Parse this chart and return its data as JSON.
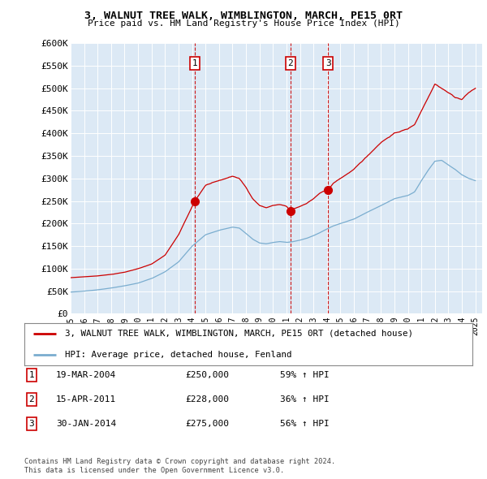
{
  "title": "3, WALNUT TREE WALK, WIMBLINGTON, MARCH, PE15 0RT",
  "subtitle": "Price paid vs. HM Land Registry's House Price Index (HPI)",
  "plot_bg_color": "#dce9f5",
  "ylim": [
    0,
    600000
  ],
  "yticks": [
    0,
    50000,
    100000,
    150000,
    200000,
    250000,
    300000,
    350000,
    400000,
    450000,
    500000,
    550000,
    600000
  ],
  "ytick_labels": [
    "£0",
    "£50K",
    "£100K",
    "£150K",
    "£200K",
    "£250K",
    "£300K",
    "£350K",
    "£400K",
    "£450K",
    "£500K",
    "£550K",
    "£600K"
  ],
  "xlim_start": 1995.0,
  "xlim_end": 2025.5,
  "red_line_color": "#cc0000",
  "blue_line_color": "#7aadcf",
  "transactions": [
    {
      "num": 1,
      "year": 2004.21,
      "price": 250000,
      "date": "19-MAR-2004",
      "pct": "59%",
      "dir": "↑"
    },
    {
      "num": 2,
      "year": 2011.29,
      "price": 228000,
      "date": "15-APR-2011",
      "pct": "36%",
      "dir": "↑"
    },
    {
      "num": 3,
      "year": 2014.08,
      "price": 275000,
      "date": "30-JAN-2014",
      "pct": "56%",
      "dir": "↑"
    }
  ],
  "legend_red_label": "3, WALNUT TREE WALK, WIMBLINGTON, MARCH, PE15 0RT (detached house)",
  "legend_blue_label": "HPI: Average price, detached house, Fenland",
  "footer_line1": "Contains HM Land Registry data © Crown copyright and database right 2024.",
  "footer_line2": "This data is licensed under the Open Government Licence v3.0.",
  "red_knots_x": [
    1995.0,
    1996.0,
    1997.0,
    1998.0,
    1999.0,
    2000.0,
    2001.0,
    2002.0,
    2003.0,
    2004.21,
    2005.0,
    2006.0,
    2007.0,
    2007.5,
    2008.0,
    2008.5,
    2009.0,
    2009.5,
    2010.0,
    2010.5,
    2011.0,
    2011.29,
    2011.5,
    2012.0,
    2012.5,
    2013.0,
    2013.5,
    2014.08,
    2014.5,
    2015.0,
    2016.0,
    2017.0,
    2018.0,
    2019.0,
    2020.0,
    2020.5,
    2021.0,
    2021.5,
    2022.0,
    2022.5,
    2023.0,
    2023.5,
    2024.0,
    2024.5,
    2025.0
  ],
  "red_knots_y": [
    80000,
    82000,
    84000,
    87000,
    92000,
    100000,
    110000,
    130000,
    175000,
    250000,
    285000,
    295000,
    305000,
    300000,
    280000,
    255000,
    240000,
    235000,
    240000,
    242000,
    238000,
    228000,
    232000,
    238000,
    245000,
    255000,
    268000,
    275000,
    290000,
    300000,
    320000,
    350000,
    380000,
    400000,
    410000,
    420000,
    450000,
    480000,
    510000,
    500000,
    490000,
    480000,
    475000,
    490000,
    500000
  ],
  "blue_knots_x": [
    1995.0,
    1996.0,
    1997.0,
    1998.0,
    1999.0,
    2000.0,
    2001.0,
    2002.0,
    2003.0,
    2004.0,
    2005.0,
    2006.0,
    2007.0,
    2007.5,
    2008.0,
    2008.5,
    2009.0,
    2009.5,
    2010.0,
    2010.5,
    2011.0,
    2011.5,
    2012.0,
    2012.5,
    2013.0,
    2013.5,
    2014.0,
    2014.5,
    2015.0,
    2016.0,
    2017.0,
    2018.0,
    2019.0,
    2020.0,
    2020.5,
    2021.0,
    2021.5,
    2022.0,
    2022.5,
    2023.0,
    2023.5,
    2024.0,
    2024.5,
    2025.0
  ],
  "blue_knots_y": [
    48000,
    50000,
    53000,
    57000,
    62000,
    68000,
    78000,
    93000,
    115000,
    150000,
    175000,
    185000,
    192000,
    190000,
    178000,
    165000,
    157000,
    155000,
    158000,
    160000,
    158000,
    160000,
    163000,
    167000,
    173000,
    180000,
    188000,
    195000,
    200000,
    210000,
    225000,
    240000,
    255000,
    262000,
    270000,
    295000,
    318000,
    338000,
    340000,
    330000,
    320000,
    308000,
    300000,
    295000
  ]
}
